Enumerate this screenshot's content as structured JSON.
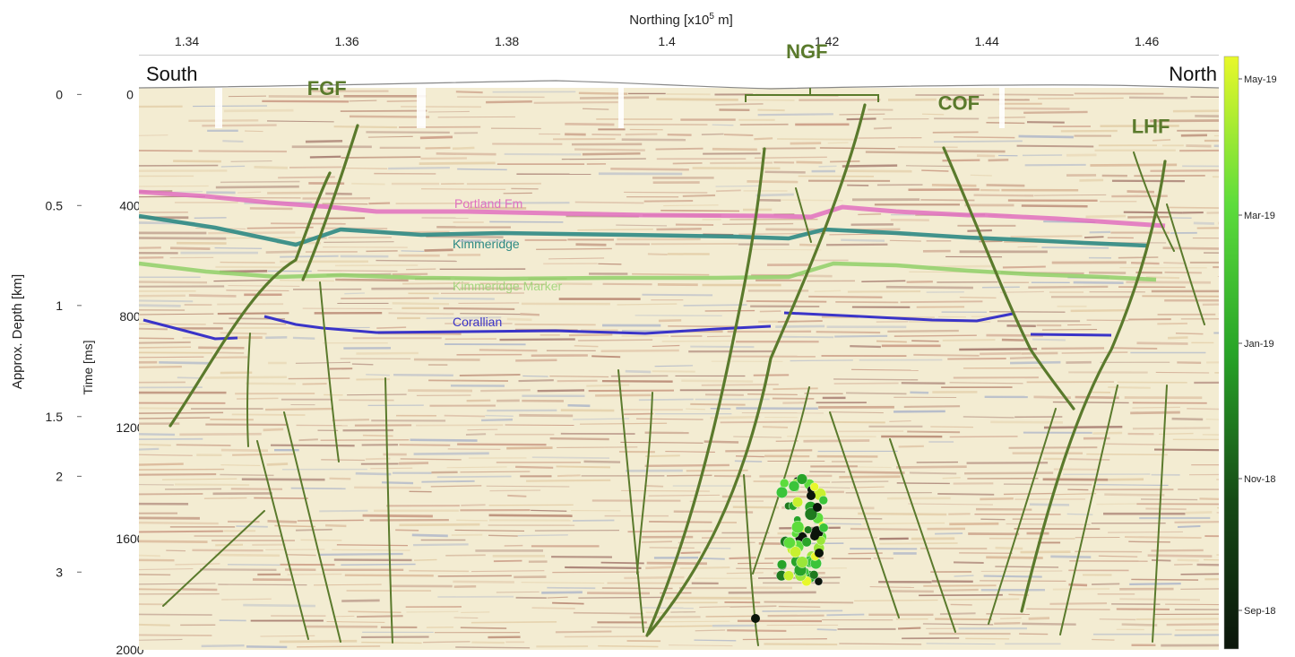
{
  "chart_data": {
    "type": "scatter",
    "title": "",
    "top_axis": {
      "label": "Northing [x10",
      "label_exp": "5",
      "label_tail": " m]",
      "ticks": [
        "1.34",
        "1.36",
        "1.38",
        "1.4",
        "1.42",
        "1.44",
        "1.46"
      ],
      "tick_values": [
        1.34,
        1.36,
        1.38,
        1.4,
        1.42,
        1.44,
        1.46
      ],
      "range": [
        1.334,
        1.469
      ]
    },
    "time_axis": {
      "label": "Time [ms]",
      "ticks": [
        "0",
        "400",
        "800",
        "1200",
        "1600",
        "2000"
      ],
      "tick_values": [
        0,
        400,
        800,
        1200,
        1600,
        2000
      ],
      "range": [
        -140,
        2000
      ]
    },
    "depth_axis": {
      "label": "Approx. Depth [km]",
      "ticks": [
        "0",
        "0.5",
        "1",
        "1.5",
        "2",
        "3"
      ],
      "tick_values": [
        0,
        400,
        760,
        1160,
        1375,
        1720
      ]
    },
    "side_labels": {
      "south": "South",
      "north": "North"
    },
    "faults": [
      {
        "name": "FGF",
        "label_at": [
          1.3575,
          2
        ]
      },
      {
        "name": "NGF",
        "label_at": [
          1.4175,
          -130
        ]
      },
      {
        "name": "COF",
        "label_at": [
          1.4365,
          55
        ]
      },
      {
        "name": "LHF",
        "label_at": [
          1.4605,
          140
        ]
      }
    ],
    "horizons": [
      {
        "name": "Portland Fm",
        "color": "#e070c0"
      },
      {
        "name": "Kimmeridge",
        "color": "#2e8a84"
      },
      {
        "name": "Kimmeridge Marker",
        "color": "#8fd068"
      },
      {
        "name": "Corallian",
        "color": "#3a34c8"
      }
    ],
    "colorbar": {
      "ticks": [
        "May-19",
        "Mar-19",
        "Jan-19",
        "Nov-18",
        "Sep-18"
      ],
      "range": [
        "Sep-18",
        "May-19"
      ]
    }
  }
}
